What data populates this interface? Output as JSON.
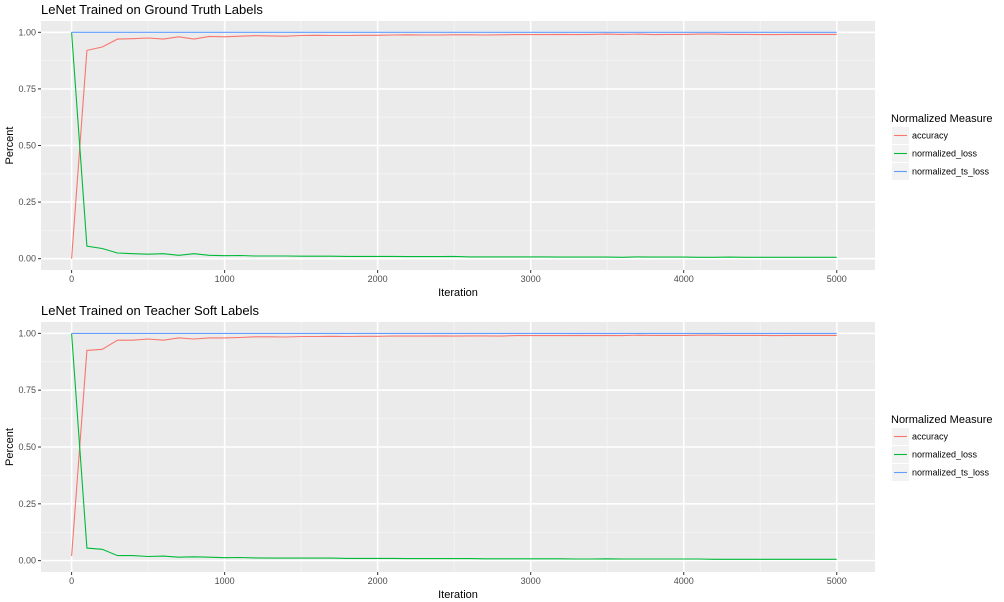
{
  "chart_data": [
    {
      "type": "line",
      "title": "LeNet Trained on Ground Truth Labels",
      "xlabel": "Iteration",
      "ylabel": "Percent",
      "xlim": [
        -200,
        5250
      ],
      "ylim": [
        -0.05,
        1.05
      ],
      "x_ticks": [
        0,
        1000,
        2000,
        3000,
        4000,
        5000
      ],
      "y_ticks": [
        0.0,
        0.25,
        0.5,
        0.75,
        1.0
      ],
      "y_tick_labels": [
        "0.00",
        "0.25",
        "0.50",
        "0.75",
        "1.00"
      ],
      "grid": true,
      "legend": {
        "title": "Normalized Measure",
        "position": "right"
      },
      "x": [
        0,
        100,
        200,
        300,
        400,
        500,
        600,
        700,
        800,
        900,
        1000,
        1100,
        1200,
        1300,
        1400,
        1500,
        1600,
        1700,
        1800,
        1900,
        2000,
        2100,
        2200,
        2300,
        2400,
        2500,
        2600,
        2700,
        2800,
        2900,
        3000,
        3100,
        3200,
        3300,
        3400,
        3500,
        3600,
        3700,
        3800,
        3900,
        4000,
        4100,
        4200,
        4300,
        4400,
        4500,
        4600,
        4700,
        4800,
        4900,
        5000
      ],
      "series": [
        {
          "name": "accuracy",
          "color": "#F8766D",
          "values": [
            0.0,
            0.92,
            0.935,
            0.97,
            0.972,
            0.975,
            0.97,
            0.98,
            0.97,
            0.982,
            0.98,
            0.983,
            0.985,
            0.984,
            0.983,
            0.986,
            0.987,
            0.986,
            0.986,
            0.987,
            0.987,
            0.988,
            0.989,
            0.988,
            0.988,
            0.989,
            0.989,
            0.988,
            0.989,
            0.99,
            0.99,
            0.99,
            0.991,
            0.99,
            0.991,
            0.992,
            0.991,
            0.992,
            0.99,
            0.991,
            0.991,
            0.992,
            0.992,
            0.991,
            0.991,
            0.99,
            0.99,
            0.991,
            0.991,
            0.991,
            0.991
          ]
        },
        {
          "name": "normalized_loss",
          "color": "#00BA38",
          "values": [
            1.0,
            0.055,
            0.045,
            0.025,
            0.022,
            0.02,
            0.022,
            0.015,
            0.022,
            0.015,
            0.013,
            0.014,
            0.012,
            0.012,
            0.012,
            0.011,
            0.011,
            0.011,
            0.01,
            0.01,
            0.01,
            0.01,
            0.009,
            0.009,
            0.009,
            0.01,
            0.008,
            0.008,
            0.008,
            0.008,
            0.008,
            0.008,
            0.007,
            0.007,
            0.007,
            0.007,
            0.006,
            0.008,
            0.007,
            0.007,
            0.007,
            0.006,
            0.006,
            0.007,
            0.006,
            0.006,
            0.006,
            0.006,
            0.006,
            0.006,
            0.006
          ]
        },
        {
          "name": "normalized_ts_loss",
          "color": "#619CFF",
          "values": [
            1.0,
            1.0,
            1.0,
            1.0,
            1.0,
            1.0,
            1.0,
            1.0,
            1.0,
            1.0,
            1.0,
            1.0,
            1.0,
            1.0,
            1.0,
            1.0,
            1.0,
            1.0,
            1.0,
            1.0,
            1.0,
            1.0,
            1.0,
            1.0,
            1.0,
            1.0,
            1.0,
            1.0,
            1.0,
            1.0,
            1.0,
            1.0,
            1.0,
            1.0,
            1.0,
            1.0,
            1.0,
            1.0,
            1.0,
            1.0,
            1.0,
            1.0,
            1.0,
            1.0,
            1.0,
            1.0,
            1.0,
            1.0,
            1.0,
            1.0,
            1.0
          ]
        }
      ]
    },
    {
      "type": "line",
      "title": "LeNet Trained on Teacher Soft Labels",
      "xlabel": "Iteration",
      "ylabel": "Percent",
      "xlim": [
        -200,
        5250
      ],
      "ylim": [
        -0.05,
        1.05
      ],
      "x_ticks": [
        0,
        1000,
        2000,
        3000,
        4000,
        5000
      ],
      "y_ticks": [
        0.0,
        0.25,
        0.5,
        0.75,
        1.0
      ],
      "y_tick_labels": [
        "0.00",
        "0.25",
        "0.50",
        "0.75",
        "1.00"
      ],
      "grid": true,
      "legend": {
        "title": "Normalized Measure",
        "position": "right"
      },
      "x": [
        0,
        100,
        200,
        300,
        400,
        500,
        600,
        700,
        800,
        900,
        1000,
        1100,
        1200,
        1300,
        1400,
        1500,
        1600,
        1700,
        1800,
        1900,
        2000,
        2100,
        2200,
        2300,
        2400,
        2500,
        2600,
        2700,
        2800,
        2900,
        3000,
        3100,
        3200,
        3300,
        3400,
        3500,
        3600,
        3700,
        3800,
        3900,
        4000,
        4100,
        4200,
        4300,
        4400,
        4500,
        4600,
        4700,
        4800,
        4900,
        5000
      ],
      "series": [
        {
          "name": "accuracy",
          "color": "#F8766D",
          "values": [
            0.02,
            0.925,
            0.93,
            0.97,
            0.97,
            0.975,
            0.97,
            0.98,
            0.975,
            0.98,
            0.98,
            0.982,
            0.985,
            0.985,
            0.984,
            0.986,
            0.986,
            0.987,
            0.986,
            0.987,
            0.987,
            0.988,
            0.988,
            0.988,
            0.989,
            0.988,
            0.989,
            0.989,
            0.988,
            0.99,
            0.99,
            0.99,
            0.99,
            0.991,
            0.99,
            0.991,
            0.99,
            0.992,
            0.991,
            0.991,
            0.991,
            0.992,
            0.992,
            0.991,
            0.991,
            0.991,
            0.99,
            0.991,
            0.991,
            0.991,
            0.991
          ]
        },
        {
          "name": "normalized_loss",
          "color": "#00BA38",
          "values": [
            1.0,
            0.055,
            0.05,
            0.022,
            0.022,
            0.018,
            0.02,
            0.015,
            0.017,
            0.015,
            0.013,
            0.014,
            0.012,
            0.011,
            0.011,
            0.011,
            0.011,
            0.011,
            0.01,
            0.01,
            0.01,
            0.01,
            0.009,
            0.009,
            0.009,
            0.009,
            0.009,
            0.008,
            0.008,
            0.008,
            0.008,
            0.008,
            0.008,
            0.007,
            0.007,
            0.008,
            0.007,
            0.007,
            0.007,
            0.007,
            0.007,
            0.007,
            0.006,
            0.006,
            0.006,
            0.006,
            0.006,
            0.006,
            0.006,
            0.006,
            0.006
          ]
        },
        {
          "name": "normalized_ts_loss",
          "color": "#619CFF",
          "values": [
            1.0,
            1.0,
            1.0,
            1.0,
            1.0,
            1.0,
            1.0,
            1.0,
            1.0,
            1.0,
            1.0,
            1.0,
            1.0,
            1.0,
            1.0,
            1.0,
            1.0,
            1.0,
            1.0,
            1.0,
            1.0,
            1.0,
            1.0,
            1.0,
            1.0,
            1.0,
            1.0,
            1.0,
            1.0,
            1.0,
            1.0,
            1.0,
            1.0,
            1.0,
            1.0,
            1.0,
            1.0,
            1.0,
            1.0,
            1.0,
            1.0,
            1.0,
            1.0,
            1.0,
            1.0,
            1.0,
            1.0,
            1.0,
            1.0,
            1.0,
            1.0
          ]
        }
      ]
    }
  ]
}
